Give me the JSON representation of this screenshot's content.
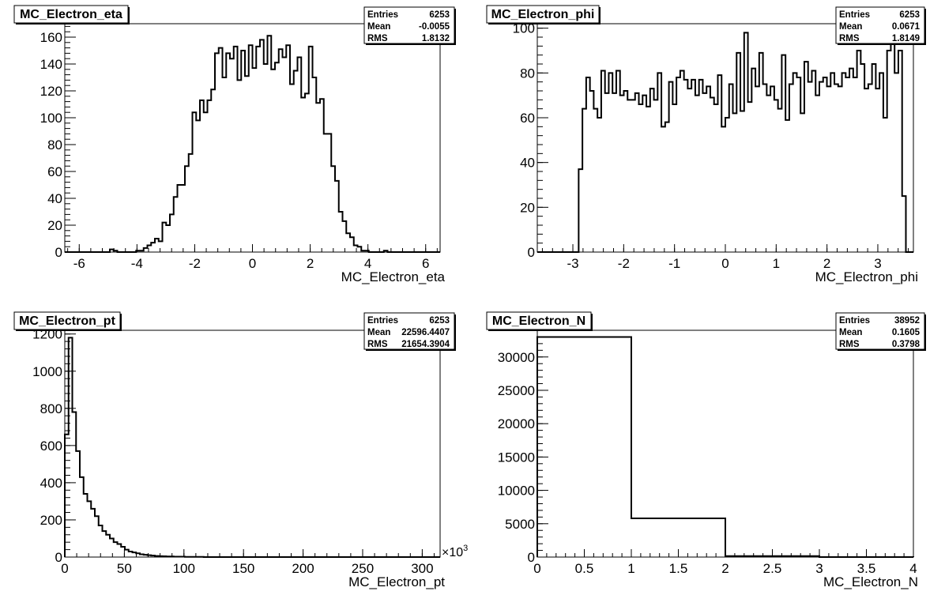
{
  "chart_data": [
    {
      "type": "bar",
      "title": "MC_Electron_eta",
      "xlabel": "MC_Electron_eta",
      "xlim": [
        -6.5,
        6.5
      ],
      "ylim": [
        0,
        170
      ],
      "x_ticks": [
        -6,
        -4,
        -2,
        0,
        2,
        4,
        6
      ],
      "y_ticks": [
        0,
        20,
        40,
        60,
        80,
        100,
        120,
        140,
        160
      ],
      "stats": [
        {
          "label": "Entries",
          "value": "6253"
        },
        {
          "label": "Mean",
          "value": "-0.0055"
        },
        {
          "label": "RMS",
          "value": "1.8132"
        }
      ],
      "bins": {
        "start": -6.5,
        "width": 0.13,
        "values": [
          0,
          0,
          0,
          0,
          0,
          0,
          0,
          0,
          0,
          0,
          0,
          0,
          2,
          1,
          0,
          0,
          0,
          0,
          0,
          1,
          1,
          3,
          5,
          7,
          10,
          8,
          22,
          20,
          28,
          41,
          50,
          50,
          64,
          73,
          104,
          98,
          113,
          104,
          113,
          121,
          148,
          152,
          130,
          148,
          144,
          153,
          128,
          150,
          131,
          154,
          137,
          153,
          158,
          140,
          161,
          136,
          141,
          151,
          145,
          154,
          125,
          135,
          145,
          115,
          118,
          153,
          130,
          111,
          114,
          88,
          88,
          64,
          53,
          30,
          23,
          14,
          11,
          5,
          4,
          1,
          1,
          0,
          0,
          0,
          0,
          1,
          0,
          0,
          0,
          0,
          0,
          0,
          0,
          0,
          0,
          0,
          0,
          0,
          0,
          0
        ]
      }
    },
    {
      "type": "bar",
      "title": "MC_Electron_phi",
      "xlabel": "MC_Electron_phi",
      "xlim": [
        -3.7,
        3.7
      ],
      "ylim": [
        0,
        102
      ],
      "x_ticks": [
        -3,
        -2,
        -1,
        0,
        1,
        2,
        3
      ],
      "y_ticks": [
        0,
        20,
        40,
        60,
        80,
        100
      ],
      "stats": [
        {
          "label": "Entries",
          "value": "6253"
        },
        {
          "label": "Mean",
          "value": "0.0671"
        },
        {
          "label": "RMS",
          "value": "1.8149"
        }
      ],
      "bins": {
        "start": -3.7,
        "width": 0.074,
        "values": [
          0,
          0,
          0,
          0,
          0,
          0,
          0,
          0,
          0,
          0,
          0,
          37,
          64,
          78,
          72,
          64,
          60,
          81,
          71,
          80,
          71,
          81,
          70,
          72,
          68,
          68,
          71,
          66,
          70,
          65,
          73,
          68,
          80,
          56,
          58,
          76,
          66,
          78,
          81,
          77,
          73,
          77,
          70,
          77,
          71,
          74,
          69,
          66,
          79,
          56,
          60,
          75,
          62,
          89,
          63,
          98,
          67,
          82,
          74,
          89,
          75,
          70,
          74,
          68,
          64,
          88,
          59,
          75,
          80,
          78,
          62,
          85,
          76,
          81,
          70,
          76,
          78,
          74,
          80,
          75,
          74,
          80,
          78,
          82,
          78,
          90,
          84,
          73,
          75,
          84,
          73,
          80,
          60,
          90,
          98,
          80,
          90,
          25,
          0,
          0
        ]
      }
    },
    {
      "type": "bar",
      "title": "MC_Electron_pt",
      "xlabel": "MC_Electron_pt",
      "x_exponent_label": "×10",
      "x_exponent_power": "3",
      "xlim": [
        0,
        315
      ],
      "ylim": [
        0,
        1220
      ],
      "x_ticks": [
        0,
        50,
        100,
        150,
        200,
        250,
        300
      ],
      "y_ticks": [
        0,
        200,
        400,
        600,
        800,
        1000,
        1200
      ],
      "stats": [
        {
          "label": "Entries",
          "value": "6253"
        },
        {
          "label": "Mean",
          "value": "22596.4407"
        },
        {
          "label": "RMS",
          "value": "21654.3904"
        }
      ],
      "bins": {
        "start": 0,
        "width": 3.15,
        "values": [
          660,
          1180,
          780,
          570,
          430,
          340,
          300,
          260,
          220,
          170,
          140,
          120,
          100,
          80,
          70,
          55,
          40,
          30,
          25,
          20,
          15,
          12,
          10,
          8,
          6,
          5,
          4,
          3,
          3,
          2,
          2,
          2,
          1,
          1,
          1,
          1,
          1,
          0,
          0,
          0,
          0,
          0,
          0,
          0,
          0,
          0,
          0,
          0,
          0,
          0,
          0,
          0,
          0,
          0,
          0,
          0,
          0,
          0,
          0,
          0,
          0,
          0,
          0,
          0,
          0,
          0,
          0,
          0,
          0,
          0,
          0,
          0,
          0,
          0,
          0,
          0,
          0,
          0,
          0,
          0,
          0,
          0,
          0,
          0,
          0,
          0,
          0,
          0,
          0,
          0,
          0,
          0,
          0,
          0,
          0,
          0,
          0,
          0,
          0,
          0
        ]
      }
    },
    {
      "type": "bar",
      "title": "MC_Electron_N",
      "xlabel": "MC_Electron_N",
      "xlim": [
        0,
        4
      ],
      "ylim": [
        0,
        34000
      ],
      "x_ticks": [
        0,
        0.5,
        1,
        1.5,
        2,
        2.5,
        3,
        3.5,
        4
      ],
      "y_ticks": [
        0,
        5000,
        10000,
        15000,
        20000,
        25000,
        30000
      ],
      "stats": [
        {
          "label": "Entries",
          "value": "38952"
        },
        {
          "label": "Mean",
          "value": "0.1605"
        },
        {
          "label": "RMS",
          "value": "0.3798"
        }
      ],
      "bins": {
        "start": 0,
        "width": 1,
        "values": [
          33000,
          5800,
          150,
          2
        ]
      }
    }
  ]
}
